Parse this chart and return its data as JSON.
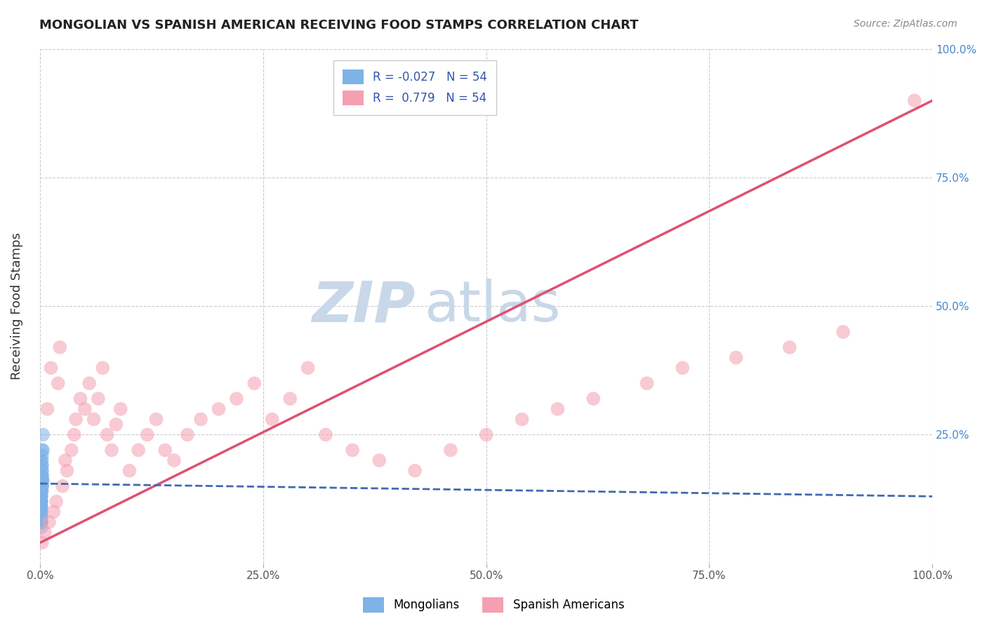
{
  "title": "MONGOLIAN VS SPANISH AMERICAN RECEIVING FOOD STAMPS CORRELATION CHART",
  "source": "Source: ZipAtlas.com",
  "ylabel": "Receiving Food Stamps",
  "R_mongolian": -0.027,
  "R_spanish": 0.779,
  "N_mongolian": 54,
  "N_spanish": 54,
  "xlim": [
    0,
    1.0
  ],
  "ylim": [
    0,
    1.0
  ],
  "xtick_labels": [
    "0.0%",
    "25.0%",
    "50.0%",
    "75.0%",
    "100.0%"
  ],
  "xtick_positions": [
    0,
    0.25,
    0.5,
    0.75,
    1.0
  ],
  "ytick_positions": [
    0.25,
    0.5,
    0.75,
    1.0
  ],
  "right_ytick_labels": [
    "25.0%",
    "50.0%",
    "75.0%",
    "100.0%"
  ],
  "color_mongolian": "#7eb3e8",
  "color_spanish": "#f4a0b0",
  "line_color_mongolian": "#4169b0",
  "line_color_spanish": "#e05070",
  "background_color": "#ffffff",
  "watermark_color": "#c8d8e8",
  "legend_labels": [
    "Mongolians",
    "Spanish Americans"
  ],
  "mongolian_x": [
    0.001,
    0.002,
    0.001,
    0.003,
    0.001,
    0.002,
    0.001,
    0.001,
    0.002,
    0.001,
    0.003,
    0.001,
    0.002,
    0.001,
    0.001,
    0.002,
    0.001,
    0.002,
    0.001,
    0.002,
    0.001,
    0.001,
    0.002,
    0.001,
    0.003,
    0.001,
    0.002,
    0.001,
    0.001,
    0.002,
    0.001,
    0.002,
    0.001,
    0.001,
    0.002,
    0.001,
    0.001,
    0.002,
    0.001,
    0.001,
    0.002,
    0.001,
    0.001,
    0.002,
    0.001,
    0.001,
    0.002,
    0.001,
    0.001,
    0.001,
    0.001,
    0.001,
    0.001,
    0.001
  ],
  "mongolian_y": [
    0.2,
    0.17,
    0.14,
    0.22,
    0.1,
    0.15,
    0.12,
    0.08,
    0.18,
    0.16,
    0.25,
    0.13,
    0.19,
    0.11,
    0.09,
    0.21,
    0.14,
    0.17,
    0.12,
    0.15,
    0.1,
    0.13,
    0.2,
    0.08,
    0.16,
    0.11,
    0.18,
    0.09,
    0.14,
    0.22,
    0.12,
    0.16,
    0.1,
    0.13,
    0.19,
    0.08,
    0.11,
    0.15,
    0.09,
    0.13,
    0.17,
    0.1,
    0.12,
    0.16,
    0.08,
    0.11,
    0.14,
    0.09,
    0.12,
    0.07,
    0.1,
    0.08,
    0.11,
    0.09
  ],
  "spanish_x": [
    0.002,
    0.005,
    0.008,
    0.01,
    0.012,
    0.015,
    0.018,
    0.02,
    0.022,
    0.025,
    0.028,
    0.03,
    0.035,
    0.038,
    0.04,
    0.045,
    0.05,
    0.055,
    0.06,
    0.065,
    0.07,
    0.075,
    0.08,
    0.085,
    0.09,
    0.1,
    0.11,
    0.12,
    0.13,
    0.14,
    0.15,
    0.165,
    0.18,
    0.2,
    0.22,
    0.24,
    0.26,
    0.28,
    0.3,
    0.32,
    0.35,
    0.38,
    0.42,
    0.46,
    0.5,
    0.54,
    0.58,
    0.62,
    0.68,
    0.72,
    0.78,
    0.84,
    0.9,
    0.98
  ],
  "spanish_y": [
    0.04,
    0.06,
    0.3,
    0.08,
    0.38,
    0.1,
    0.12,
    0.35,
    0.42,
    0.15,
    0.2,
    0.18,
    0.22,
    0.25,
    0.28,
    0.32,
    0.3,
    0.35,
    0.28,
    0.32,
    0.38,
    0.25,
    0.22,
    0.27,
    0.3,
    0.18,
    0.22,
    0.25,
    0.28,
    0.22,
    0.2,
    0.25,
    0.28,
    0.3,
    0.32,
    0.35,
    0.28,
    0.32,
    0.38,
    0.25,
    0.22,
    0.2,
    0.18,
    0.22,
    0.25,
    0.28,
    0.3,
    0.32,
    0.35,
    0.38,
    0.4,
    0.42,
    0.45,
    0.9
  ],
  "spanish_line_x": [
    0.0,
    1.0
  ],
  "spanish_line_y": [
    0.04,
    0.9
  ],
  "mongolian_line_x": [
    0.0,
    1.0
  ],
  "mongolian_line_y": [
    0.155,
    0.13
  ]
}
